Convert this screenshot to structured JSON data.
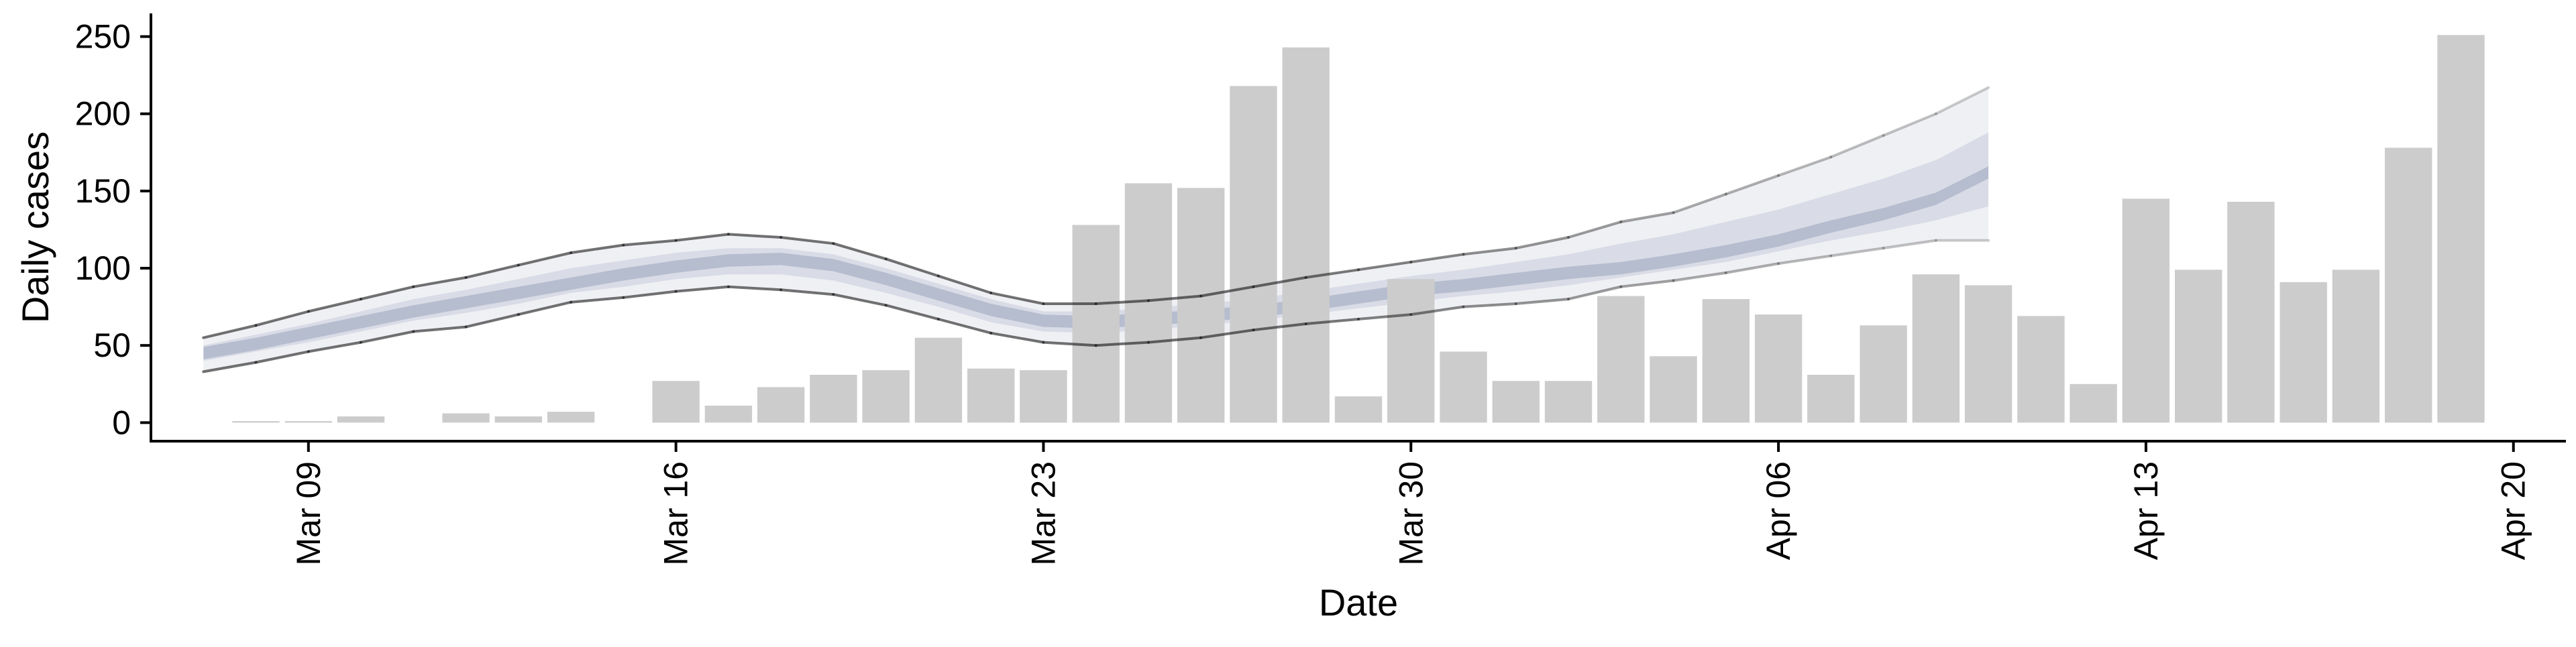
{
  "chart_data": {
    "type": "bar",
    "xlabel": "Date",
    "ylabel": "Daily cases",
    "ylim": [
      -12,
      265
    ],
    "xlim": [
      "2020-03-06",
      "2020-04-21"
    ],
    "yticks": [
      0,
      50,
      100,
      150,
      200,
      250
    ],
    "xticks": [
      {
        "date": "2020-03-09",
        "label": "Mar 09"
      },
      {
        "date": "2020-03-16",
        "label": "Mar 16"
      },
      {
        "date": "2020-03-23",
        "label": "Mar 23"
      },
      {
        "date": "2020-03-30",
        "label": "Mar 30"
      },
      {
        "date": "2020-04-06",
        "label": "Apr 06"
      },
      {
        "date": "2020-04-13",
        "label": "Apr 13"
      },
      {
        "date": "2020-04-20",
        "label": "Apr 20"
      }
    ],
    "bars": {
      "color": "#cccccc",
      "dates": [
        "2020-03-08",
        "2020-03-09",
        "2020-03-10",
        "2020-03-12",
        "2020-03-13",
        "2020-03-14",
        "2020-03-16",
        "2020-03-17",
        "2020-03-18",
        "2020-03-19",
        "2020-03-20",
        "2020-03-21",
        "2020-03-22",
        "2020-03-23",
        "2020-03-24",
        "2020-03-25",
        "2020-03-26",
        "2020-03-27",
        "2020-03-28",
        "2020-03-29",
        "2020-03-30",
        "2020-03-31",
        "2020-04-01",
        "2020-04-02",
        "2020-04-03",
        "2020-04-04",
        "2020-04-05",
        "2020-04-06",
        "2020-04-07",
        "2020-04-08",
        "2020-04-09",
        "2020-04-10",
        "2020-04-11",
        "2020-04-12",
        "2020-04-13",
        "2020-04-14",
        "2020-04-15",
        "2020-04-16",
        "2020-04-17",
        "2020-04-18",
        "2020-04-19"
      ],
      "values": [
        1,
        1,
        4,
        6,
        4,
        7,
        27,
        11,
        23,
        31,
        34,
        55,
        35,
        34,
        128,
        155,
        152,
        218,
        243,
        17,
        93,
        46,
        27,
        27,
        82,
        43,
        80,
        70,
        31,
        63,
        96,
        89,
        69,
        25,
        145,
        99,
        143,
        91,
        99,
        178,
        251
      ]
    },
    "estimate": {
      "color": "#8c96b4",
      "dates": [
        "2020-03-07",
        "2020-03-08",
        "2020-03-09",
        "2020-03-10",
        "2020-03-11",
        "2020-03-12",
        "2020-03-13",
        "2020-03-14",
        "2020-03-15",
        "2020-03-16",
        "2020-03-17",
        "2020-03-18",
        "2020-03-19",
        "2020-03-20",
        "2020-03-21",
        "2020-03-22",
        "2020-03-23",
        "2020-03-24",
        "2020-03-25",
        "2020-03-26",
        "2020-03-27",
        "2020-03-28",
        "2020-03-29",
        "2020-03-30",
        "2020-03-31",
        "2020-04-01",
        "2020-04-02",
        "2020-04-03",
        "2020-04-04",
        "2020-04-05",
        "2020-04-06",
        "2020-04-07",
        "2020-04-08",
        "2020-04-09",
        "2020-04-10"
      ],
      "median": [
        45,
        51,
        58,
        65,
        72,
        78,
        84,
        90,
        96,
        101,
        105,
        106,
        102,
        93,
        83,
        73,
        66,
        65,
        67,
        69,
        72,
        76,
        81,
        86,
        89,
        93,
        97,
        100,
        105,
        111,
        118,
        127,
        135,
        145,
        162
      ],
      "low90": [
        33,
        39,
        46,
        52,
        59,
        62,
        70,
        78,
        81,
        85,
        88,
        86,
        83,
        76,
        67,
        58,
        52,
        50,
        52,
        55,
        60,
        64,
        67,
        70,
        75,
        77,
        80,
        88,
        92,
        97,
        103,
        108,
        113,
        118,
        118
      ],
      "high90": [
        55,
        63,
        72,
        80,
        88,
        94,
        102,
        110,
        115,
        118,
        122,
        120,
        116,
        106,
        95,
        84,
        77,
        77,
        79,
        82,
        88,
        94,
        99,
        104,
        109,
        113,
        120,
        130,
        136,
        148,
        160,
        172,
        186,
        200,
        217
      ],
      "low50": [
        40,
        46,
        52,
        59,
        66,
        71,
        77,
        84,
        88,
        93,
        96,
        96,
        92,
        84,
        75,
        65,
        59,
        58,
        60,
        63,
        66,
        70,
        74,
        78,
        82,
        85,
        89,
        94,
        99,
        104,
        111,
        118,
        124,
        131,
        140
      ],
      "high50": [
        50,
        57,
        64,
        72,
        80,
        86,
        93,
        100,
        105,
        110,
        113,
        113,
        109,
        100,
        90,
        80,
        72,
        72,
        74,
        77,
        80,
        85,
        90,
        95,
        99,
        104,
        109,
        116,
        122,
        130,
        138,
        148,
        158,
        170,
        188
      ]
    }
  }
}
